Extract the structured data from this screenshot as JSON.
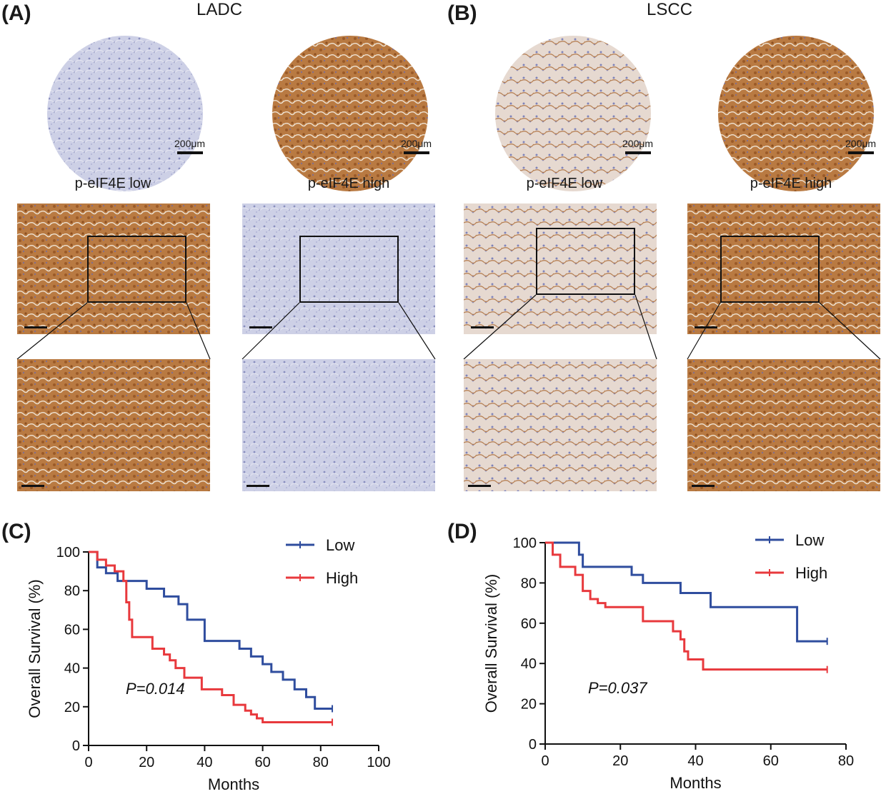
{
  "panels": {
    "A": {
      "label": "(A)",
      "title": "LADC",
      "caption_low": "p-eIF4E low",
      "caption_high": "p-eIF4E high",
      "scale_low": "200μm",
      "scale_high": "200μm"
    },
    "B": {
      "label": "(B)",
      "title": "LSCC",
      "caption_low": "p-eIF4E low",
      "caption_high": "p-eIF4E high",
      "scale_low": "200μm",
      "scale_high": "200μm"
    },
    "C": {
      "label": "(C)"
    },
    "D": {
      "label": "(D)"
    }
  },
  "colors": {
    "low": "#2f4d9e",
    "high": "#e8393d",
    "brown_stain": "#b8743a",
    "blue_stain": "#c8cbe3"
  },
  "chart_data": [
    {
      "type": "line",
      "panel": "C",
      "xlabel": "Months",
      "ylabel": "Overall Survival (%)",
      "xlim": [
        0,
        100
      ],
      "ylim": [
        0,
        100
      ],
      "xticks": [
        "0",
        "20",
        "40",
        "60",
        "80",
        "100"
      ],
      "yticks": [
        "0",
        "20",
        "40",
        "60",
        "80",
        "100"
      ],
      "annotation": "P=0.014",
      "legend_position": "top-right",
      "series": [
        {
          "name": "Low",
          "x": [
            0,
            3,
            6,
            10,
            20,
            26,
            31,
            34,
            40,
            52,
            56,
            60,
            63,
            67,
            71,
            75,
            78,
            84
          ],
          "y": [
            100,
            92,
            89,
            85,
            81,
            77,
            73,
            65,
            54,
            50,
            46,
            42,
            38,
            34,
            29,
            25,
            19,
            19
          ]
        },
        {
          "name": "High",
          "x": [
            0,
            3,
            6,
            9,
            12,
            13,
            14,
            15,
            16,
            22,
            26,
            28,
            30,
            33,
            39,
            46,
            50,
            54,
            56,
            58,
            60,
            84
          ],
          "y": [
            100,
            96,
            93,
            90,
            85,
            74,
            65,
            56,
            56,
            50,
            47,
            44,
            40,
            35,
            29,
            26,
            21,
            18,
            16,
            14,
            12,
            12
          ]
        }
      ]
    },
    {
      "type": "line",
      "panel": "D",
      "xlabel": "Months",
      "ylabel": "Overall Survival (%)",
      "xlim": [
        0,
        80
      ],
      "ylim": [
        0,
        100
      ],
      "xticks": [
        "0",
        "20",
        "40",
        "60",
        "80"
      ],
      "yticks": [
        "0",
        "20",
        "40",
        "60",
        "80",
        "100"
      ],
      "annotation": "P=0.037",
      "legend_position": "top-right",
      "series": [
        {
          "name": "Low",
          "x": [
            0,
            9,
            10,
            23,
            26,
            36,
            44,
            67,
            75
          ],
          "y": [
            100,
            94,
            88,
            84,
            80,
            75,
            68,
            51,
            51
          ]
        },
        {
          "name": "High",
          "x": [
            0,
            2,
            4,
            8,
            10,
            12,
            14,
            16,
            26,
            34,
            36,
            37,
            38,
            42,
            75
          ],
          "y": [
            100,
            94,
            88,
            84,
            76,
            72,
            70,
            68,
            61,
            56,
            52,
            46,
            42,
            37,
            37
          ]
        }
      ]
    }
  ]
}
